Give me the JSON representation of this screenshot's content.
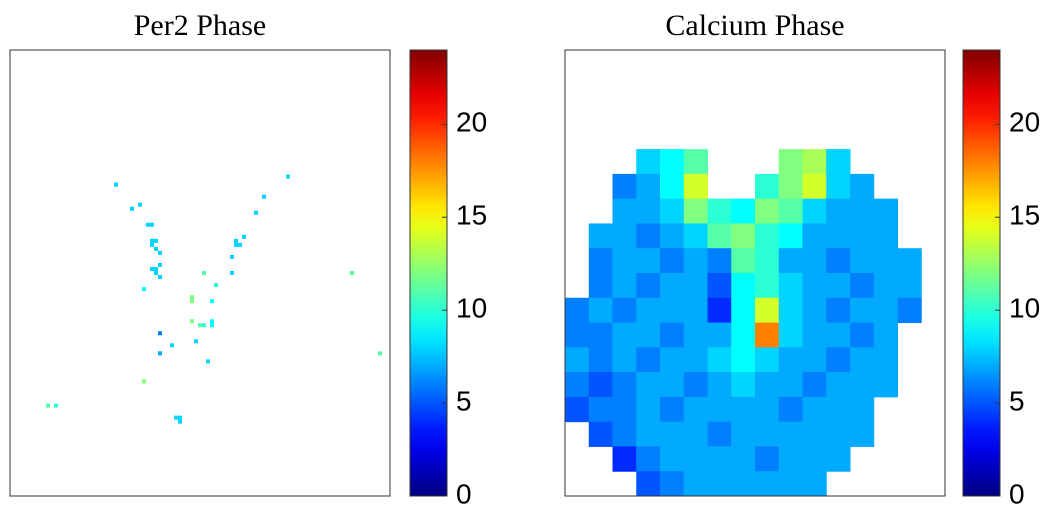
{
  "chart_data": [
    {
      "type": "heatmap",
      "title": "Per2 Phase",
      "colormap": "jet",
      "clim": [
        0,
        24
      ],
      "cticks": [
        0,
        5,
        10,
        15,
        20
      ],
      "grid_size": [
        95,
        111
      ],
      "points": [
        [
          26,
          33,
          8
        ],
        [
          30,
          39,
          8
        ],
        [
          32,
          38,
          8
        ],
        [
          34,
          43,
          8
        ],
        [
          35,
          43,
          8
        ],
        [
          35,
          47,
          8
        ],
        [
          36,
          47,
          8
        ],
        [
          35,
          48,
          8
        ],
        [
          36,
          49,
          8
        ],
        [
          37,
          50,
          8
        ],
        [
          35,
          54,
          8
        ],
        [
          36,
          54,
          8
        ],
        [
          37,
          53,
          8
        ],
        [
          36,
          55,
          8
        ],
        [
          33,
          59,
          9
        ],
        [
          37,
          56,
          8
        ],
        [
          45,
          61,
          12
        ],
        [
          45,
          62,
          12
        ],
        [
          48,
          55,
          11
        ],
        [
          51,
          58,
          10
        ],
        [
          50,
          62,
          9
        ],
        [
          47,
          68,
          11
        ],
        [
          48,
          68,
          10
        ],
        [
          50,
          67,
          9
        ],
        [
          50,
          68,
          9
        ],
        [
          45,
          67,
          12
        ],
        [
          37,
          70,
          6
        ],
        [
          37,
          75,
          7
        ],
        [
          40,
          73,
          8
        ],
        [
          46,
          72,
          8
        ],
        [
          49,
          77,
          8
        ],
        [
          33,
          82,
          12
        ],
        [
          41,
          91,
          8
        ],
        [
          42,
          91,
          8
        ],
        [
          42,
          92,
          8
        ],
        [
          9,
          88,
          11
        ],
        [
          11,
          88,
          10
        ],
        [
          56,
          47,
          8
        ],
        [
          57,
          48,
          8
        ],
        [
          56,
          48,
          8
        ],
        [
          58,
          46,
          8
        ],
        [
          55,
          51,
          8
        ],
        [
          55,
          55,
          8
        ],
        [
          61,
          40,
          8
        ],
        [
          63,
          36,
          8
        ],
        [
          69,
          31,
          8
        ],
        [
          85,
          55,
          11
        ],
        [
          92,
          75,
          11
        ]
      ]
    },
    {
      "type": "heatmap",
      "title": "Calcium Phase",
      "colormap": "jet",
      "clim": [
        0,
        24
      ],
      "cticks": [
        0,
        5,
        10,
        15,
        20
      ],
      "z": [
        [
          null,
          null,
          null,
          null,
          null,
          null,
          null,
          null,
          null,
          null,
          null,
          null,
          null,
          null,
          null,
          null
        ],
        [
          null,
          null,
          null,
          null,
          null,
          null,
          null,
          null,
          null,
          null,
          null,
          null,
          null,
          null,
          null,
          null
        ],
        [
          null,
          null,
          null,
          null,
          null,
          null,
          null,
          null,
          null,
          null,
          null,
          null,
          null,
          null,
          null,
          null
        ],
        [
          null,
          null,
          null,
          null,
          null,
          null,
          null,
          null,
          null,
          null,
          null,
          null,
          null,
          null,
          null,
          null
        ],
        [
          null,
          null,
          null,
          8,
          9,
          11,
          null,
          null,
          null,
          12,
          13,
          8,
          null,
          null,
          null,
          null
        ],
        [
          null,
          null,
          6,
          7,
          9,
          14,
          null,
          null,
          10,
          12,
          14,
          8,
          7,
          null,
          null,
          null
        ],
        [
          null,
          null,
          7,
          7,
          8,
          12,
          10,
          9,
          12,
          11,
          8,
          7,
          7,
          7,
          null,
          null
        ],
        [
          null,
          7,
          7,
          6,
          7,
          8,
          11,
          12,
          10,
          9,
          7,
          7,
          7,
          7,
          null,
          null
        ],
        [
          null,
          6,
          7,
          7,
          6,
          7,
          6,
          11,
          10,
          7,
          7,
          6,
          7,
          7,
          7,
          null
        ],
        [
          null,
          6,
          7,
          6,
          7,
          7,
          5,
          9,
          10,
          8,
          7,
          7,
          6,
          7,
          7,
          null
        ],
        [
          6,
          7,
          6,
          7,
          7,
          7,
          4,
          9,
          14,
          8,
          7,
          6,
          7,
          7,
          6,
          null
        ],
        [
          6,
          6,
          7,
          7,
          6,
          7,
          7,
          9,
          18,
          8,
          7,
          7,
          6,
          7,
          null,
          null
        ],
        [
          7,
          6,
          7,
          6,
          7,
          7,
          8,
          9,
          8,
          7,
          7,
          6,
          7,
          7,
          null,
          null
        ],
        [
          6,
          5,
          6,
          7,
          7,
          6,
          7,
          8,
          7,
          7,
          6,
          7,
          7,
          7,
          null,
          null
        ],
        [
          5,
          6,
          6,
          7,
          6,
          7,
          7,
          7,
          7,
          6,
          7,
          7,
          7,
          null,
          null,
          null
        ],
        [
          null,
          5,
          6,
          7,
          7,
          7,
          6,
          7,
          7,
          7,
          7,
          7,
          7,
          null,
          null,
          null
        ],
        [
          null,
          null,
          4,
          6,
          7,
          7,
          7,
          7,
          6,
          7,
          7,
          7,
          null,
          null,
          null,
          null
        ],
        [
          null,
          null,
          null,
          5,
          6,
          7,
          7,
          7,
          7,
          7,
          7,
          null,
          null,
          null,
          null,
          null
        ]
      ]
    }
  ]
}
